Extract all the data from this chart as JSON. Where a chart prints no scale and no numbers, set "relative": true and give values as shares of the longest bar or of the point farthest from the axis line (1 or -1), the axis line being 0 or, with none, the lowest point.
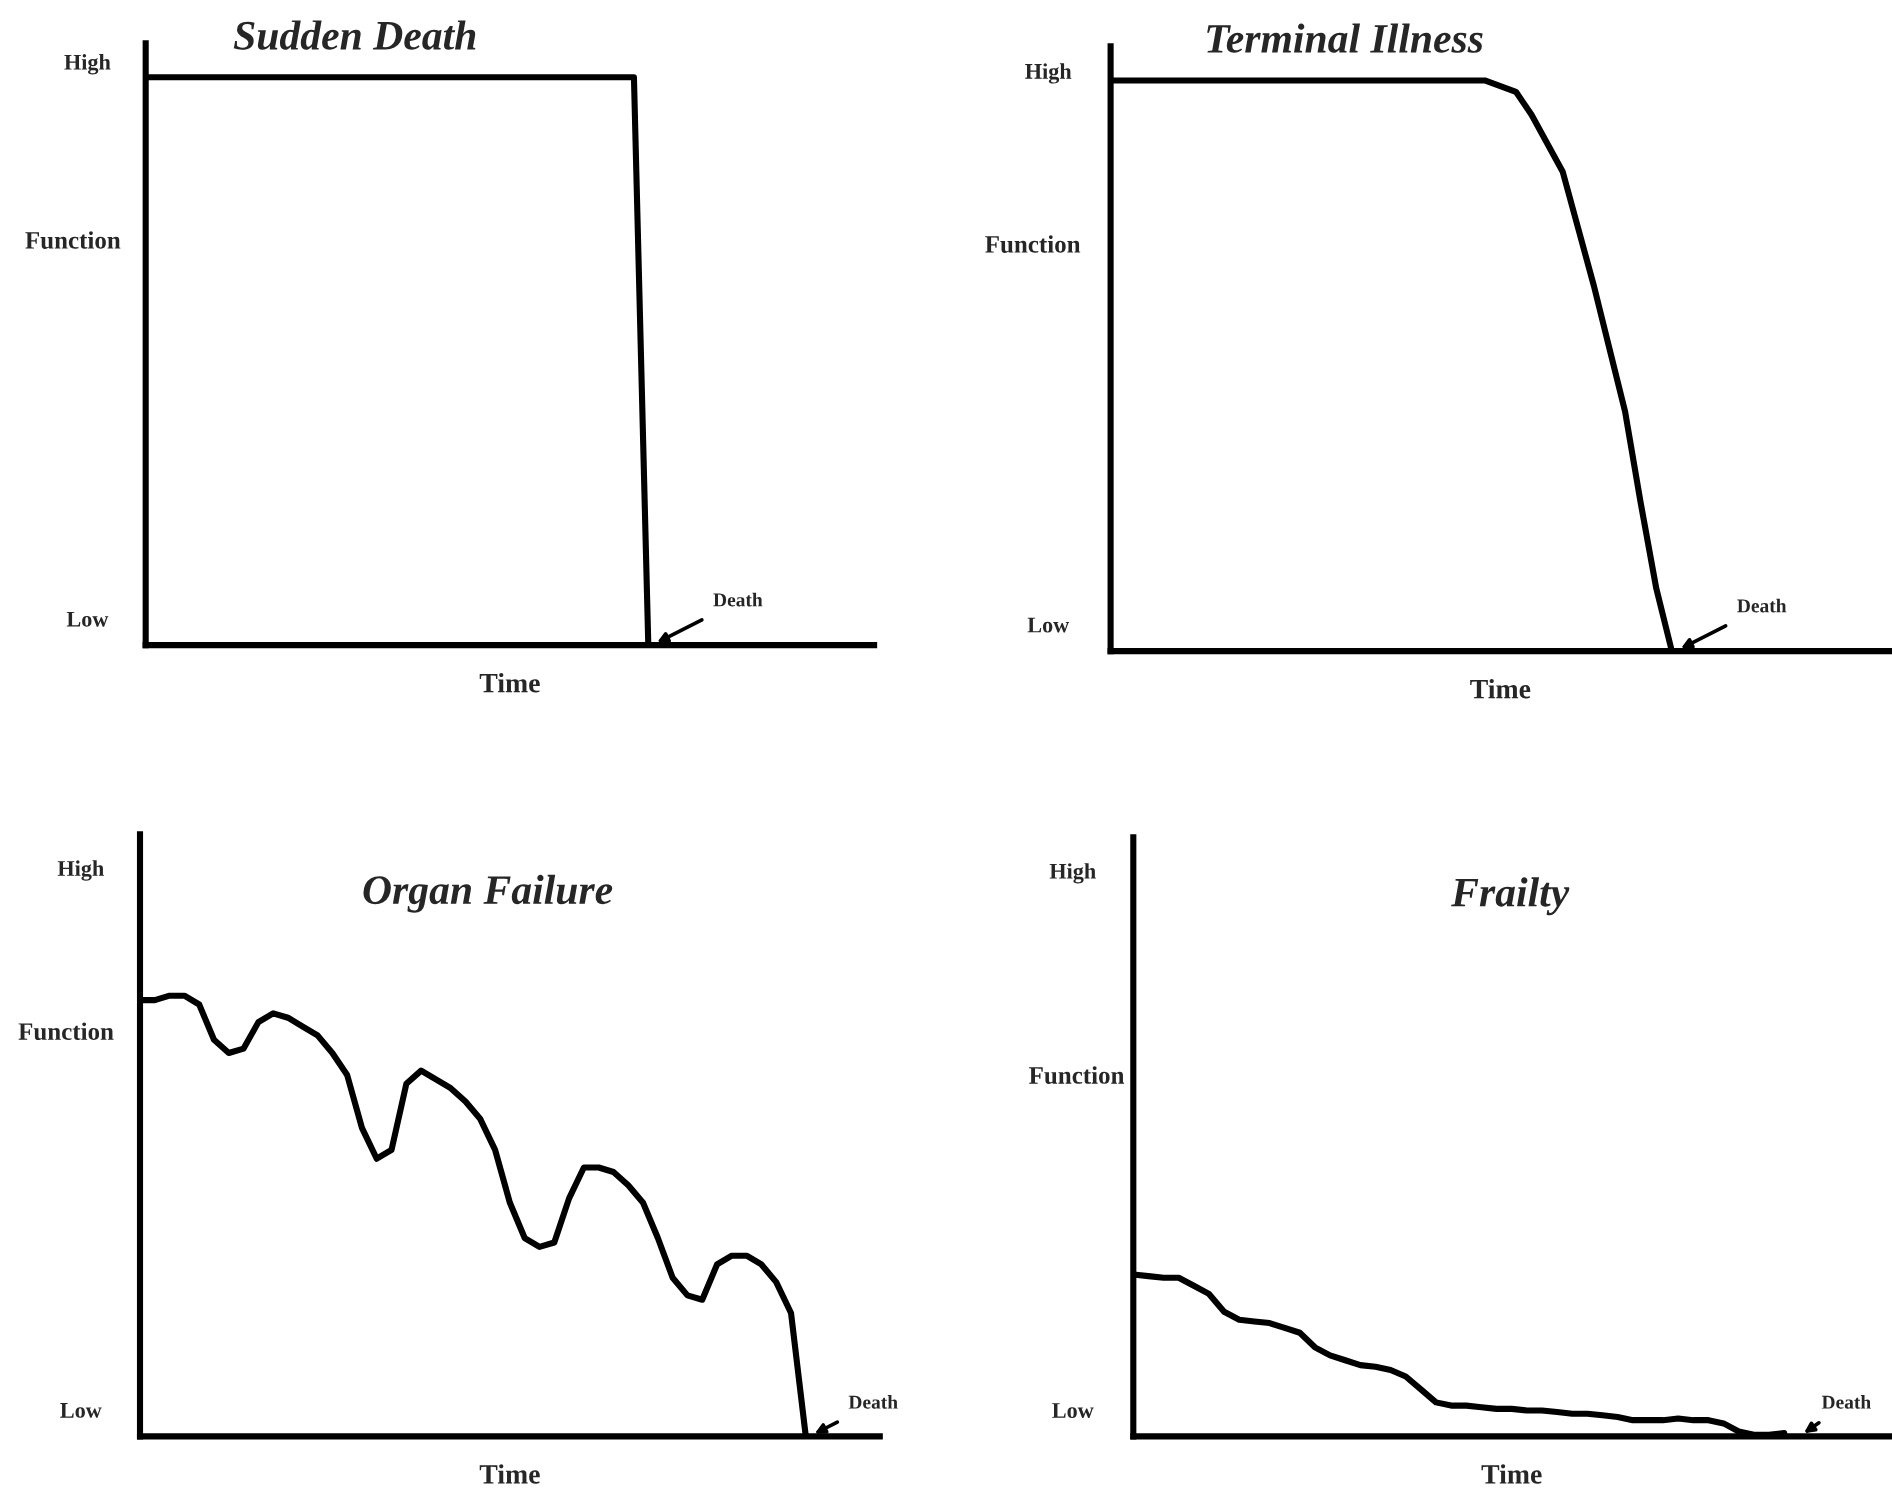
{
  "chart_data": [
    {
      "type": "line",
      "title": "Sudden Death",
      "xlabel": "Time",
      "ylabel": "Function",
      "relative": true,
      "tick_labels": false,
      "categories": [
        null,
        null,
        null,
        null,
        null,
        null,
        null,
        null,
        null,
        null,
        null,
        null,
        null,
        null,
        null,
        null,
        null,
        null,
        null,
        null,
        null,
        null,
        null,
        null,
        null,
        null,
        null,
        null,
        null,
        null,
        null,
        null,
        null,
        null,
        null,
        null
      ],
      "series": [
        {
          "color": "#000000",
          "values": [
            1,
            1,
            1,
            1,
            1,
            1,
            1,
            1,
            1,
            1,
            1,
            1,
            1,
            1,
            1,
            1,
            1,
            1,
            1,
            1,
            1,
            1,
            1,
            1,
            1,
            1,
            1,
            1,
            1,
            1,
            1,
            1,
            1,
            1,
            1,
            0
          ]
        }
      ],
      "annotations": [
        "High",
        "Low",
        "Death"
      ]
    },
    {
      "type": "line",
      "title": "Terminal Illness",
      "xlabel": "Time",
      "ylabel": "Function",
      "relative": true,
      "tick_labels": false,
      "categories": [
        null,
        null,
        null,
        null,
        null,
        null,
        null,
        null,
        null,
        null,
        null,
        null,
        null,
        null,
        null,
        null,
        null,
        null,
        null,
        null,
        null,
        null,
        null,
        null,
        null,
        null,
        null,
        null,
        null,
        null,
        null,
        null,
        null,
        null,
        null,
        null,
        null
      ],
      "series": [
        {
          "color": "#000000",
          "values": [
            1,
            1,
            1,
            1,
            1,
            1,
            1,
            1,
            1,
            1,
            1,
            1,
            1,
            1,
            1,
            1,
            1,
            1,
            1,
            1,
            1,
            1,
            1,
            1,
            1,
            0.99,
            0.98,
            0.94,
            0.89,
            0.84,
            0.74,
            0.64,
            0.53,
            0.42,
            0.26,
            0.11,
            0
          ]
        }
      ],
      "annotations": [
        "High",
        "Low",
        "Death"
      ]
    },
    {
      "type": "line",
      "title": "Organ Failure",
      "xlabel": "Time",
      "ylabel": "Function",
      "relative": true,
      "tick_labels": false,
      "categories": [
        null,
        null,
        null,
        null,
        null,
        null,
        null,
        null,
        null,
        null,
        null,
        null,
        null,
        null,
        null,
        null,
        null,
        null,
        null,
        null,
        null,
        null,
        null,
        null,
        null,
        null,
        null,
        null,
        null,
        null,
        null,
        null,
        null,
        null,
        null,
        null,
        null,
        null,
        null,
        null,
        null,
        null,
        null,
        null,
        null,
        null
      ],
      "series": [
        {
          "color": "#000000",
          "values": [
            0.99,
            0.99,
            1,
            1,
            0.98,
            0.9,
            0.87,
            0.88,
            0.94,
            0.96,
            0.95,
            0.93,
            0.91,
            0.87,
            0.82,
            0.7,
            0.63,
            0.65,
            0.8,
            0.83,
            0.81,
            0.79,
            0.76,
            0.72,
            0.65,
            0.53,
            0.45,
            0.43,
            0.44,
            0.54,
            0.61,
            0.61,
            0.6,
            0.57,
            0.53,
            0.45,
            0.36,
            0.32,
            0.31,
            0.39,
            0.41,
            0.41,
            0.39,
            0.35,
            0.28,
            0
          ]
        }
      ],
      "annotations": [
        "High",
        "Low",
        "Death"
      ]
    },
    {
      "type": "line",
      "title": "Frailty",
      "xlabel": "Time",
      "ylabel": "Function",
      "relative": true,
      "tick_labels": false,
      "categories": [
        null,
        null,
        null,
        null,
        null,
        null,
        null,
        null,
        null,
        null,
        null,
        null,
        null,
        null,
        null,
        null,
        null,
        null,
        null,
        null,
        null,
        null,
        null,
        null,
        null,
        null,
        null,
        null,
        null,
        null,
        null,
        null,
        null,
        null,
        null,
        null,
        null,
        null,
        null,
        null,
        null,
        null,
        null,
        null
      ],
      "series": [
        {
          "color": "#000000",
          "values": [
            1,
            0.99,
            0.98,
            0.98,
            0.93,
            0.88,
            0.77,
            0.72,
            0.71,
            0.7,
            0.67,
            0.64,
            0.55,
            0.5,
            0.47,
            0.44,
            0.43,
            0.41,
            0.37,
            0.29,
            0.21,
            0.19,
            0.19,
            0.18,
            0.17,
            0.17,
            0.16,
            0.16,
            0.15,
            0.14,
            0.14,
            0.13,
            0.12,
            0.1,
            0.1,
            0.1,
            0.11,
            0.1,
            0.1,
            0.08,
            0.03,
            0.01,
            0.01,
            0.02
          ]
        }
      ],
      "annotations": [
        "High",
        "Low",
        "Death"
      ]
    }
  ]
}
